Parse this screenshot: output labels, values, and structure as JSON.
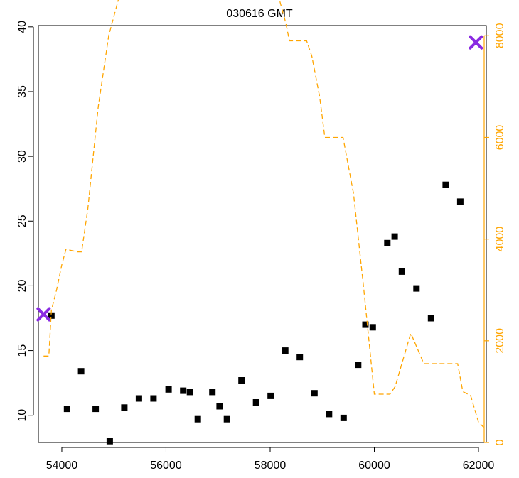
{
  "chart_data": {
    "type": "scatter",
    "title": "030616 GMT",
    "xlabel": "",
    "ylabel": "",
    "xlim": [
      53550,
      62150
    ],
    "ylim": [
      7.9,
      40.1
    ],
    "x_ticks": [
      54000,
      56000,
      58000,
      60000,
      62000
    ],
    "y_ticks": [
      10,
      15,
      20,
      25,
      30,
      35,
      40
    ],
    "y_tick_labels": [
      "10",
      "15",
      "20",
      "25",
      "30",
      "35",
      "40"
    ],
    "y2lim": [
      0,
      8200
    ],
    "y2_ticks": [
      0,
      2000,
      4000,
      6000,
      8000
    ],
    "y2_color": "#FFA500",
    "grid": false,
    "series": [
      {
        "kind": "points",
        "color": "#000000",
        "points": [
          [
            53800,
            17.7
          ],
          [
            54100,
            10.5
          ],
          [
            54370,
            13.4
          ],
          [
            54650,
            10.5
          ],
          [
            54920,
            8.0
          ],
          [
            55200,
            10.6
          ],
          [
            55480,
            11.3
          ],
          [
            55760,
            11.3
          ],
          [
            56050,
            12.0
          ],
          [
            56330,
            11.9
          ],
          [
            56460,
            11.8
          ],
          [
            56610,
            9.7
          ],
          [
            56890,
            11.8
          ],
          [
            57030,
            10.7
          ],
          [
            57170,
            9.7
          ],
          [
            57450,
            12.7
          ],
          [
            57730,
            11.0
          ],
          [
            58010,
            11.5
          ],
          [
            58290,
            15.0
          ],
          [
            58570,
            14.5
          ],
          [
            58850,
            11.7
          ],
          [
            59130,
            10.1
          ],
          [
            59410,
            9.8
          ],
          [
            59690,
            13.9
          ],
          [
            59830,
            17.0
          ],
          [
            59970,
            16.8
          ],
          [
            60250,
            23.3
          ],
          [
            60390,
            23.8
          ],
          [
            60530,
            21.1
          ],
          [
            60810,
            19.8
          ],
          [
            61090,
            17.5
          ],
          [
            61370,
            27.8
          ],
          [
            61650,
            26.5
          ]
        ]
      },
      {
        "kind": "dashed-line",
        "axis": "right",
        "color": "#FFA500",
        "points": [
          [
            53650,
            1700
          ],
          [
            53750,
            1700
          ],
          [
            53800,
            2600
          ],
          [
            53900,
            3000
          ],
          [
            54000,
            3500
          ],
          [
            54080,
            3800
          ],
          [
            54300,
            3750
          ],
          [
            54380,
            3750
          ],
          [
            54500,
            4600
          ],
          [
            54700,
            6600
          ],
          [
            54900,
            8000
          ],
          [
            55200,
            9150
          ],
          [
            55300,
            9150
          ],
          [
            55500,
            9100
          ],
          [
            56000,
            9100
          ],
          [
            56500,
            9100
          ],
          [
            56800,
            9100
          ],
          [
            56900,
            9050
          ],
          [
            57100,
            9100
          ],
          [
            57500,
            9050
          ],
          [
            58000,
            9050
          ],
          [
            58100,
            9000
          ],
          [
            58300,
            8250
          ],
          [
            58370,
            7900
          ],
          [
            58700,
            7900
          ],
          [
            58800,
            7600
          ],
          [
            58950,
            6800
          ],
          [
            59050,
            6000
          ],
          [
            59250,
            6000
          ],
          [
            59400,
            6000
          ],
          [
            59600,
            4900
          ],
          [
            59800,
            3000
          ],
          [
            60000,
            950
          ],
          [
            60050,
            950
          ],
          [
            60300,
            950
          ],
          [
            60400,
            1100
          ],
          [
            60700,
            2150
          ],
          [
            60950,
            1550
          ],
          [
            61000,
            1550
          ],
          [
            61400,
            1550
          ],
          [
            61600,
            1550
          ],
          [
            61700,
            1000
          ],
          [
            61850,
            920
          ],
          [
            62000,
            400
          ],
          [
            62100,
            300
          ]
        ]
      },
      {
        "kind": "cross-markers",
        "color": "#8A2BE2",
        "points": [
          [
            53650,
            17.8
          ],
          [
            61950,
            38.8
          ]
        ]
      }
    ]
  }
}
